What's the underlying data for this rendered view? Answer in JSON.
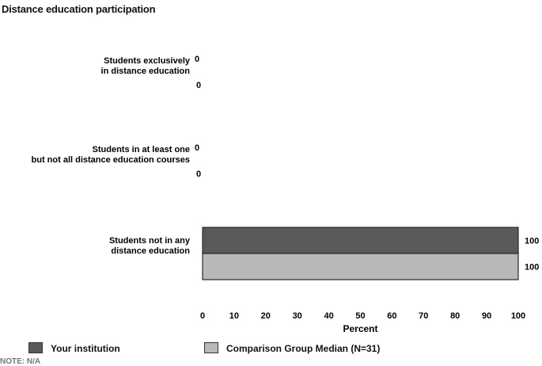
{
  "chart_data": {
    "type": "bar",
    "orientation": "horizontal",
    "title": "Distance education participation",
    "categories": [
      [
        "Students exclusively",
        "in distance education"
      ],
      [
        "Students in at least one",
        "but not all distance education courses"
      ],
      [
        "Students not in any",
        "distance education"
      ]
    ],
    "series": [
      {
        "name": "Your institution",
        "values": [
          0,
          0,
          100
        ],
        "color": "#5a5a5a"
      },
      {
        "name": "Comparison Group Median (N=31)",
        "values": [
          0,
          0,
          100
        ],
        "color": "#b8b8b8"
      }
    ],
    "xlabel": "Percent",
    "xlim": [
      0,
      100
    ],
    "xticks": [
      "0",
      "10",
      "20",
      "30",
      "40",
      "50",
      "60",
      "70",
      "80",
      "90",
      "100"
    ],
    "legend": "bottom"
  },
  "note": "NOTE: N/A"
}
